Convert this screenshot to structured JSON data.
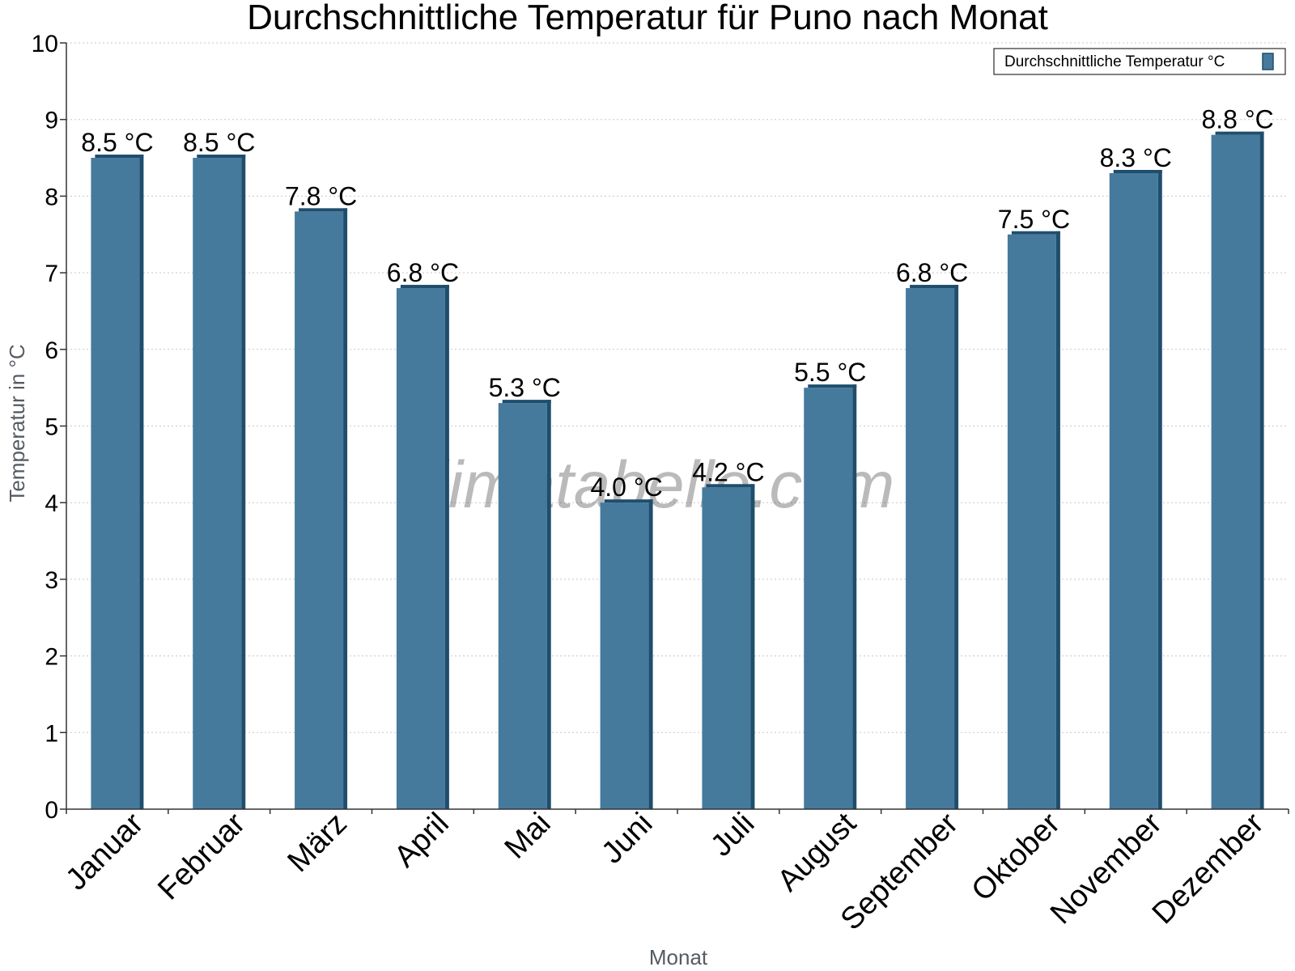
{
  "chart_data": {
    "type": "bar",
    "title": "Durchschnittliche Temperatur für Puno nach Monat",
    "xlabel": "Monat",
    "ylabel": "Temperatur in °C",
    "categories": [
      "Januar",
      "Februar",
      "März",
      "April",
      "Mai",
      "Juni",
      "Juli",
      "August",
      "September",
      "Oktober",
      "November",
      "Dezember"
    ],
    "series": [
      {
        "name": "Durchschnittliche Temperatur °C",
        "values": [
          8.5,
          8.5,
          7.8,
          6.8,
          5.3,
          4.0,
          4.2,
          5.5,
          6.8,
          7.5,
          8.3,
          8.8
        ],
        "data_labels": [
          "8.5 °C",
          "8.5 °C",
          "7.8 °C",
          "6.8 °C",
          "5.3 °C",
          "4.0 °C",
          "4.2 °C",
          "5.5 °C",
          "6.8 °C",
          "7.5 °C",
          "8.3 °C",
          "8.8 °C"
        ]
      }
    ],
    "ylim": [
      0,
      10
    ],
    "yticks": [
      "0",
      "1",
      "2",
      "3",
      "4",
      "5",
      "6",
      "7",
      "8",
      "9",
      "10"
    ],
    "grid": true,
    "legend_position": "top-right",
    "watermark": "klimatabelle.com",
    "colors": {
      "bar_face": "#457a9d",
      "bar_side": "#1f4e6d",
      "grid": "#c8c8c8",
      "axis": "#333333"
    }
  }
}
